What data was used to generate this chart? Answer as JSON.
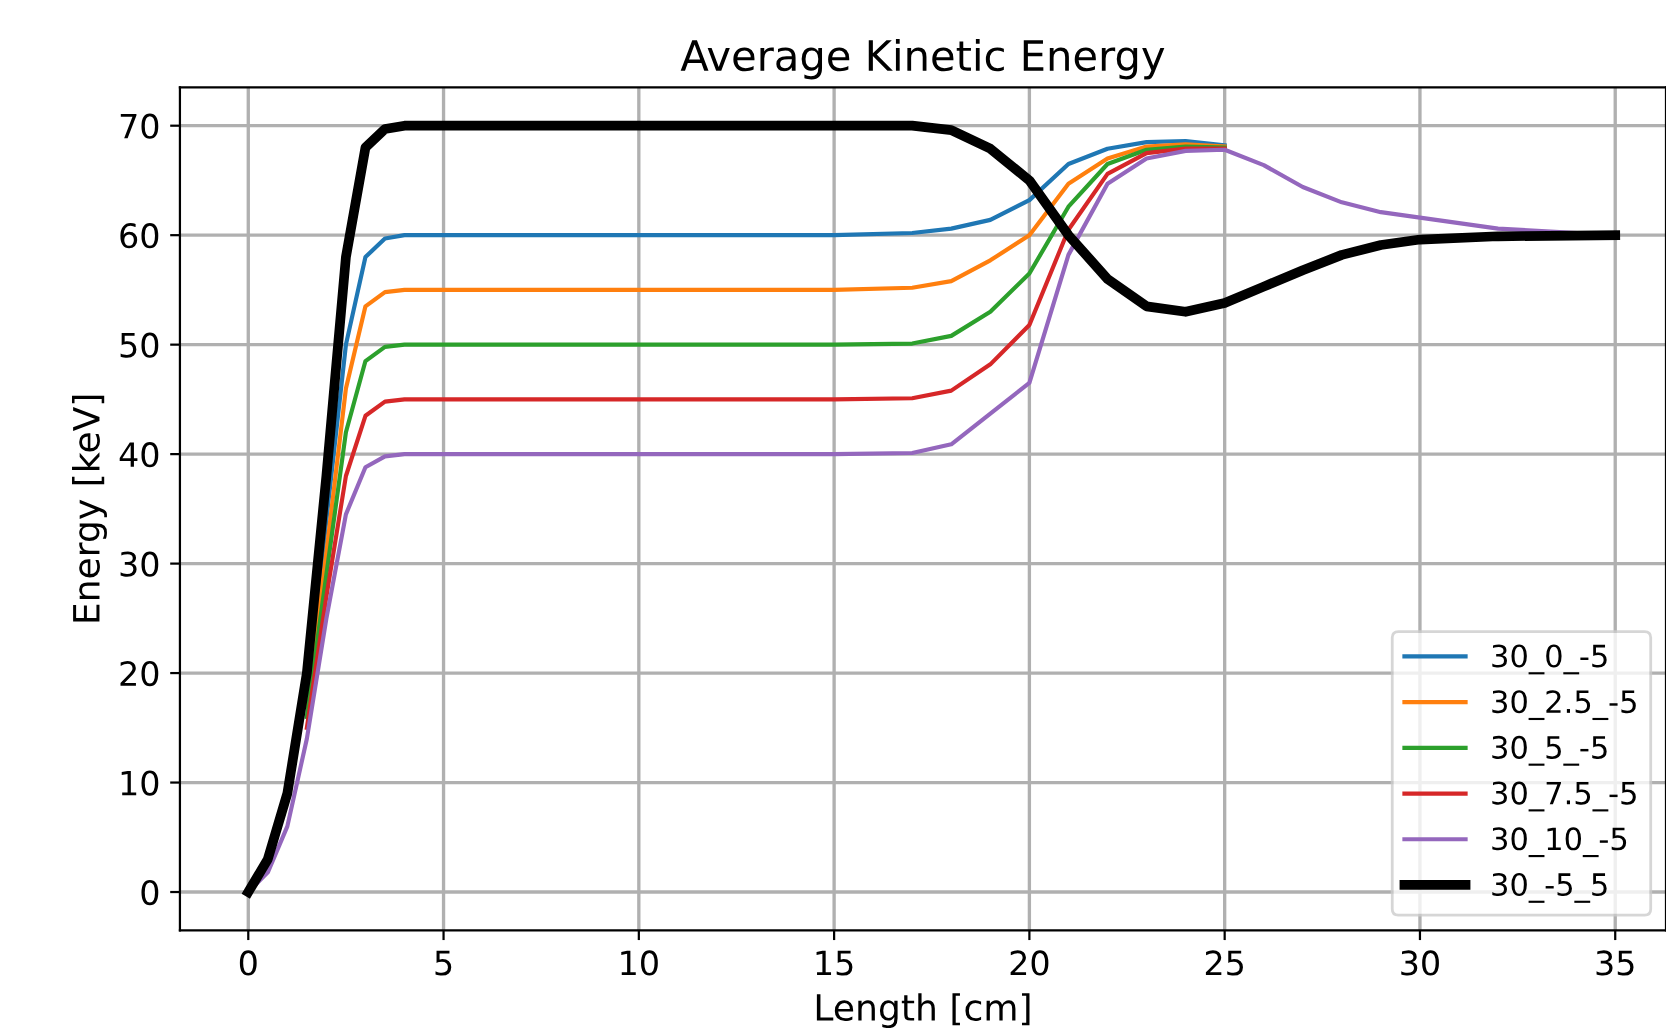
{
  "chart_data": {
    "type": "line",
    "title": "Average Kinetic Energy",
    "xlabel": "Length [cm]",
    "ylabel": "Energy [keV]",
    "x": [
      0,
      0.5,
      1,
      1.5,
      2,
      2.5,
      3,
      3.5,
      4,
      5,
      10,
      15,
      17,
      18,
      19,
      20,
      21,
      22,
      23,
      24,
      25,
      26,
      27,
      28,
      29,
      30,
      32,
      35
    ],
    "series": [
      {
        "name": "30_0_-5",
        "color": "#1f77b4",
        "values": [
          null,
          null,
          null,
          18,
          34,
          50,
          58,
          59.7,
          60,
          60,
          60,
          60,
          60.2,
          60.6,
          61.4,
          63.2,
          66.5,
          67.9,
          68.5,
          68.6,
          68.2,
          null,
          null,
          null,
          null,
          null,
          null,
          null
        ]
      },
      {
        "name": "30_2.5_-5",
        "color": "#ff7f0e",
        "values": [
          null,
          null,
          null,
          17,
          31,
          46,
          53.5,
          54.8,
          55,
          55,
          55,
          55,
          55.2,
          55.8,
          57.7,
          60,
          64.7,
          67,
          68.1,
          68.3,
          68.1,
          null,
          null,
          null,
          null,
          null,
          null,
          null
        ]
      },
      {
        "name": "30_5_-5",
        "color": "#2ca02c",
        "values": [
          null,
          null,
          null,
          16,
          29,
          42,
          48.5,
          49.8,
          50,
          50,
          50,
          50,
          50.1,
          50.8,
          53,
          56.5,
          62.6,
          66.5,
          67.8,
          68.1,
          68,
          null,
          null,
          null,
          null,
          null,
          null,
          null
        ]
      },
      {
        "name": "30_7.5_-5",
        "color": "#d62728",
        "values": [
          null,
          null,
          null,
          15,
          27,
          38,
          43.5,
          44.8,
          45,
          45,
          45,
          45,
          45.1,
          45.8,
          48.2,
          51.8,
          60.5,
          65.6,
          67.5,
          67.9,
          67.9,
          null,
          null,
          null,
          null,
          null,
          null,
          null
        ]
      },
      {
        "name": "30_10_-5",
        "color": "#9467bd",
        "values": [
          0,
          1.8,
          6,
          14,
          25,
          34.5,
          38.8,
          39.8,
          40,
          40,
          40,
          40,
          40.1,
          40.9,
          43.7,
          46.5,
          58.2,
          64.7,
          67,
          67.7,
          67.8,
          66.4,
          64.4,
          63,
          62.1,
          61.6,
          60.6,
          60
        ]
      },
      {
        "name": "30_-5_5",
        "color": "#000000",
        "values": [
          0,
          3,
          9,
          20,
          38,
          58,
          68,
          69.7,
          70,
          70,
          70,
          70,
          70,
          69.6,
          67.9,
          65,
          60,
          56,
          53.5,
          53,
          53.8,
          55.3,
          56.8,
          58.2,
          59.1,
          59.6,
          59.9,
          60
        ]
      }
    ],
    "xlim": [
      -1.75,
      36.3
    ],
    "ylim": [
      -3.5,
      73.5
    ],
    "xticks": [
      0,
      5,
      10,
      15,
      20,
      25,
      30,
      35
    ],
    "yticks": [
      0,
      10,
      20,
      30,
      40,
      50,
      60,
      70
    ],
    "grid": true,
    "legend": "bottom right",
    "marker": "none",
    "line_style": "solid"
  }
}
